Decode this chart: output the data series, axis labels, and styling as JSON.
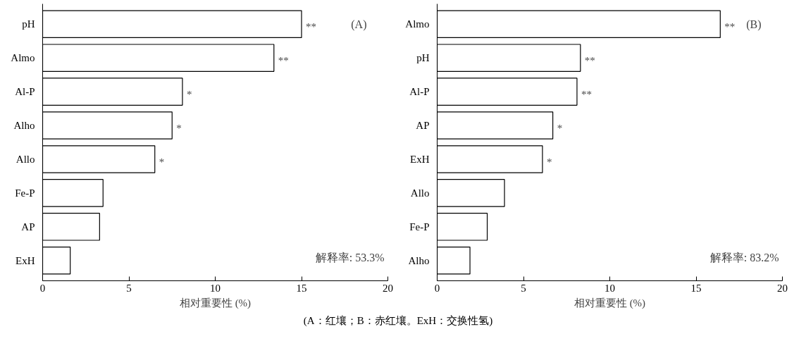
{
  "chart_data": [
    {
      "type": "bar",
      "orientation": "horizontal",
      "categories": [
        "pH",
        "Almo",
        "Al-P",
        "Alho",
        "Allo",
        "Fe-P",
        "AP",
        "ExH"
      ],
      "values": [
        15.0,
        13.4,
        8.1,
        7.5,
        6.5,
        3.5,
        3.3,
        1.6
      ],
      "color": "#ffffff",
      "xlim": [
        0,
        20
      ],
      "xticks": [
        0,
        5,
        10,
        15,
        20
      ],
      "xlabel": "相对重要性 (%)",
      "grid": false,
      "annotations": [
        "(A)",
        "解释率: 53.3%",
        "(A：红壤；B：赤红壤。ExH：交换性氢)",
        {
          "text": "**",
          "x": 15.0,
          "y": "pH"
        },
        {
          "text": "**",
          "x": 13.4,
          "y": "Almo"
        },
        {
          "text": "*",
          "x": 8.1,
          "y": "Al-P"
        },
        {
          "text": "*",
          "x": 7.5,
          "y": "Alho"
        },
        {
          "text": "*",
          "x": 6.5,
          "y": "Allo"
        }
      ]
    },
    {
      "type": "bar",
      "orientation": "horizontal",
      "categories": [
        "Almo",
        "pH",
        "Al-P",
        "AP",
        "ExH",
        "Allo",
        "Fe-P",
        "Alho"
      ],
      "values": [
        16.4,
        8.3,
        8.1,
        6.7,
        6.1,
        3.9,
        2.9,
        1.9
      ],
      "color": "#ffffff",
      "xlim": [
        0,
        20
      ],
      "xticks": [
        0,
        5,
        10,
        15,
        20
      ],
      "xlabel": "相对重要性 (%)",
      "grid": false,
      "annotations": [
        "(B)",
        "解释率: 83.2%",
        {
          "text": "**",
          "x": 16.4,
          "y": "Almo"
        },
        {
          "text": "**",
          "x": 8.3,
          "y": "pH"
        },
        {
          "text": "**",
          "x": 8.1,
          "y": "Al-P"
        },
        {
          "text": "*",
          "x": 6.7,
          "y": "AP"
        },
        {
          "text": "*",
          "x": 6.1,
          "y": "ExH"
        }
      ]
    }
  ]
}
